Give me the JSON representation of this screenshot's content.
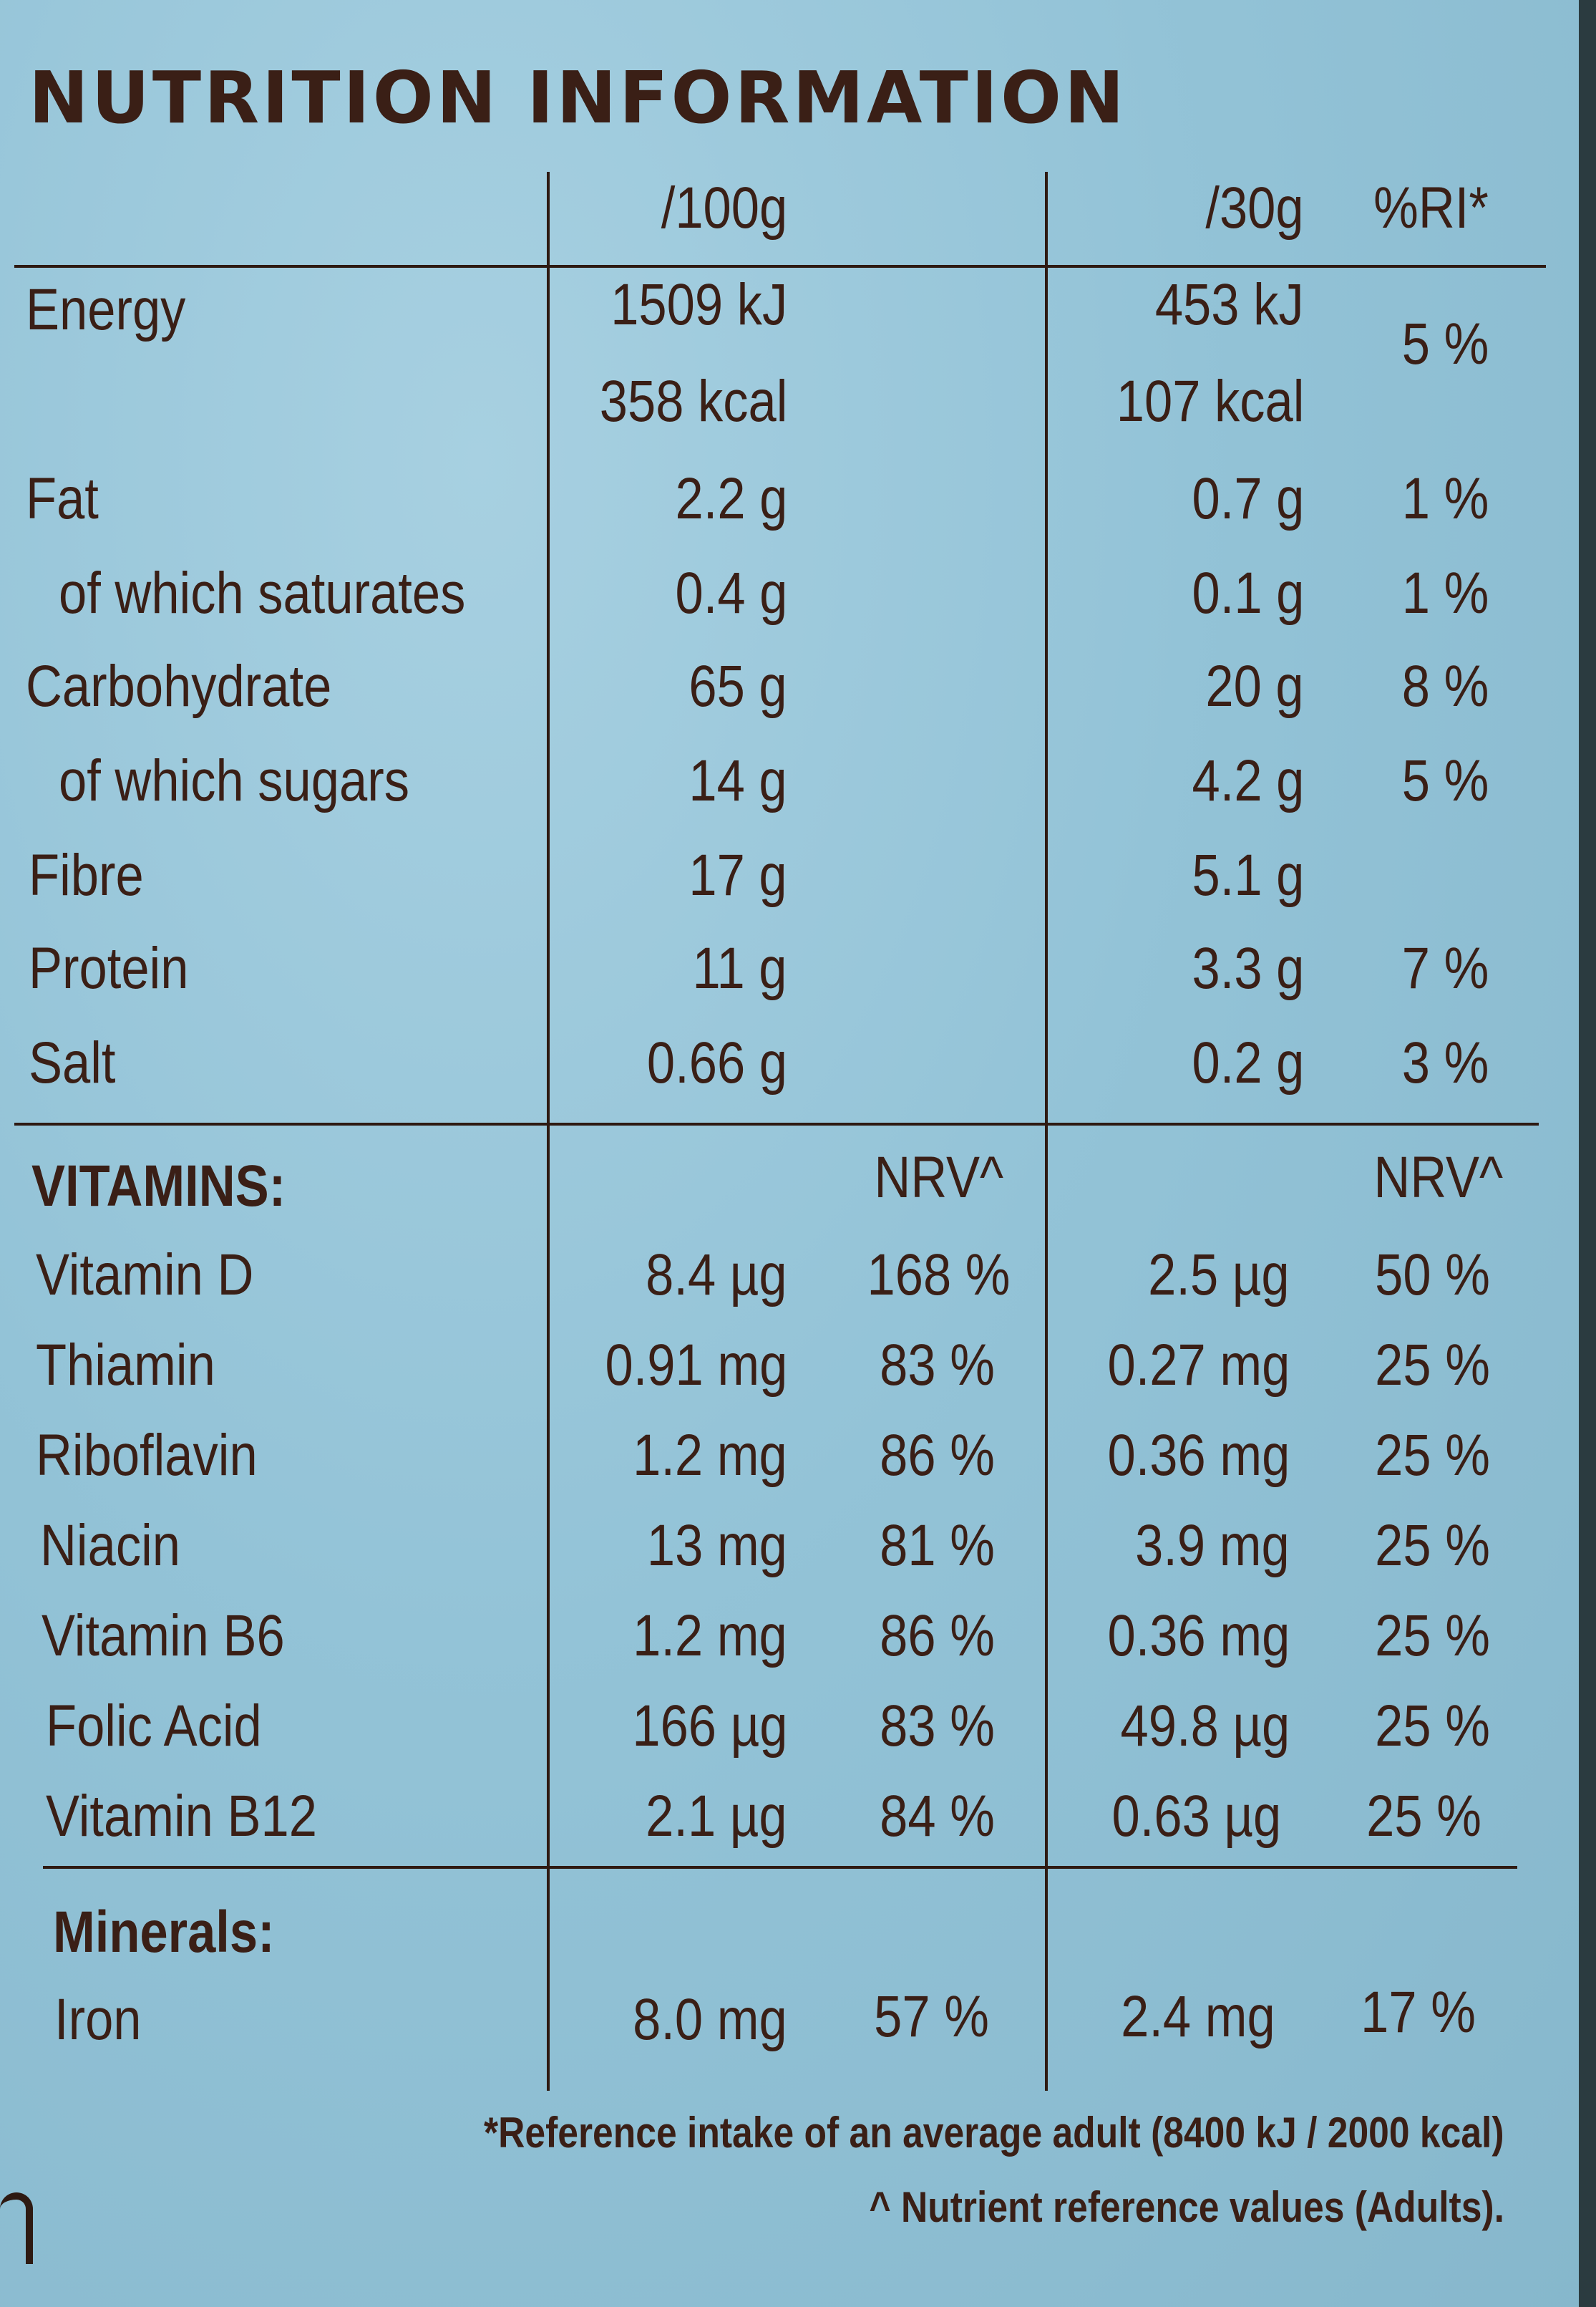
{
  "title": "NUTRITION INFORMATION",
  "headers": {
    "per100": "/100g",
    "per30": "/30g",
    "ri": "%RI*"
  },
  "nutrients": [
    {
      "name": "Energy",
      "per100": "1509 kJ",
      "per30": "453 kJ",
      "ri": "5 %"
    },
    {
      "name": "",
      "per100": "358 kcal",
      "per30": "107 kcal",
      "ri": ""
    },
    {
      "name": "Fat",
      "per100": "2.2 g",
      "per30": "0.7 g",
      "ri": "1 %"
    },
    {
      "name": "of which saturates",
      "per100": "0.4 g",
      "per30": "0.1 g",
      "ri": "1 %"
    },
    {
      "name": "Carbohydrate",
      "per100": "65 g",
      "per30": "20 g",
      "ri": "8 %"
    },
    {
      "name": "of which sugars",
      "per100": "14 g",
      "per30": "4.2 g",
      "ri": "5 %"
    },
    {
      "name": "Fibre",
      "per100": "17 g",
      "per30": "5.1 g",
      "ri": ""
    },
    {
      "name": "Protein",
      "per100": "11 g",
      "per30": "3.3 g",
      "ri": "7 %"
    },
    {
      "name": "Salt",
      "per100": "0.66 g",
      "per30": "0.2 g",
      "ri": "3 %"
    }
  ],
  "vitamins": {
    "heading": "VITAMINS:",
    "nrv_label": "NRV^",
    "rows": [
      {
        "name": "Vitamin D",
        "per100": "8.4 µg",
        "nrv100": "168 %",
        "per30": "2.5 µg",
        "nrv30": "50 %"
      },
      {
        "name": "Thiamin",
        "per100": "0.91 mg",
        "nrv100": "83 %",
        "per30": "0.27 mg",
        "nrv30": "25 %"
      },
      {
        "name": "Riboflavin",
        "per100": "1.2 mg",
        "nrv100": "86 %",
        "per30": "0.36 mg",
        "nrv30": "25 %"
      },
      {
        "name": "Niacin",
        "per100": "13 mg",
        "nrv100": "81 %",
        "per30": "3.9 mg",
        "nrv30": "25 %"
      },
      {
        "name": "Vitamin B6",
        "per100": "1.2 mg",
        "nrv100": "86 %",
        "per30": "0.36 mg",
        "nrv30": "25 %"
      },
      {
        "name": "Folic Acid",
        "per100": "166 µg",
        "nrv100": "83 %",
        "per30": "49.8 µg",
        "nrv30": "25 %"
      },
      {
        "name": "Vitamin B12",
        "per100": "2.1 µg",
        "nrv100": "84 %",
        "per30": "0.63 µg",
        "nrv30": "25 %"
      }
    ]
  },
  "minerals": {
    "heading": "Minerals:",
    "rows": [
      {
        "name": "Iron",
        "per100": "8.0 mg",
        "nrv100": "57 %",
        "per30": "2.4 mg",
        "nrv30": "17 %"
      }
    ]
  },
  "footnotes": {
    "ri": "*Reference intake of an average adult (8400 kJ / 2000 kcal)",
    "nrv": "^ Nutrient reference values (Adults)."
  }
}
